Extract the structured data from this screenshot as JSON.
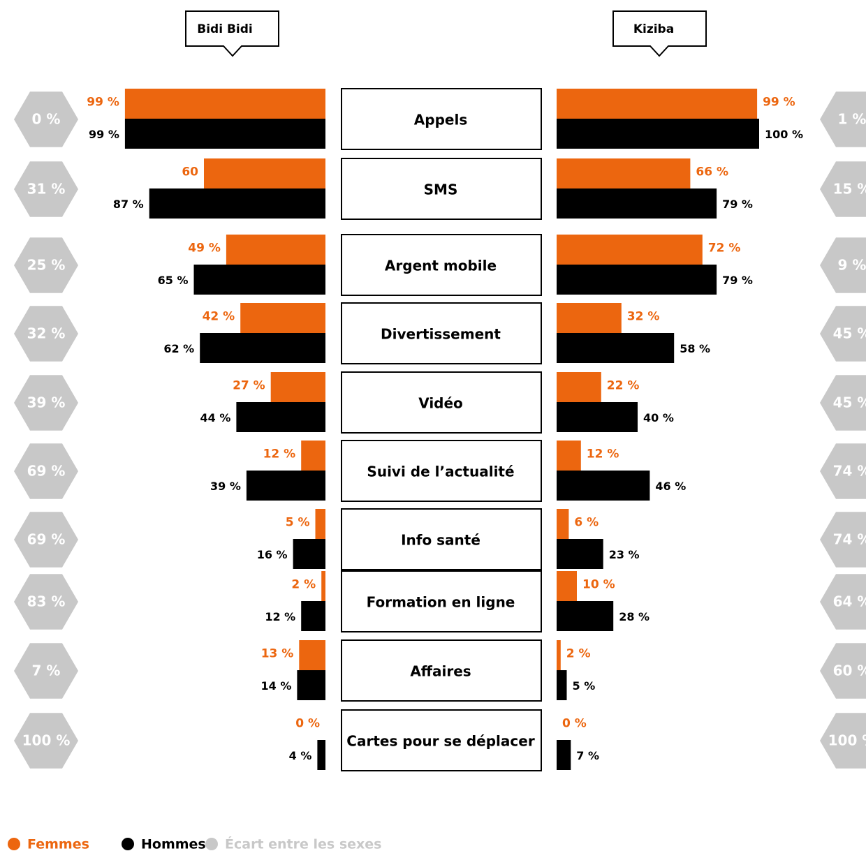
{
  "chart_data": {
    "type": "butterfly",
    "categories": [
      "Appels",
      "SMS",
      "Argent mobile",
      "Divertissement",
      "Vidéo",
      "Suivi de l’actualité",
      "Info santé",
      "Formation en ligne",
      "Affaires",
      "Cartes pour se déplacer"
    ],
    "xlim": [
      0,
      100
    ],
    "gap_name": "Écart entre les sexes",
    "gap_color": "#c8c8c8",
    "left": {
      "title": "Bidi Bidi",
      "series": [
        {
          "name": "Femmes",
          "color": "#ec660f",
          "values": [
            99,
            60,
            49,
            42,
            27,
            12,
            5,
            2,
            13,
            0
          ],
          "value_labels": [
            "99 %",
            "60",
            "49 %",
            "42 %",
            "27 %",
            "12 %",
            "5 %",
            "2 %",
            "13 %",
            "0 %"
          ]
        },
        {
          "name": "Hommes",
          "color": "#000000",
          "values": [
            99,
            87,
            65,
            62,
            44,
            39,
            16,
            12,
            14,
            4
          ],
          "value_labels": [
            "99 %",
            "87 %",
            "65 %",
            "62 %",
            "44 %",
            "39 %",
            "16 %",
            "12 %",
            "14 %",
            "4 %"
          ]
        }
      ],
      "gap": {
        "values": [
          0,
          31,
          25,
          32,
          39,
          69,
          69,
          83,
          7,
          100
        ],
        "value_labels": [
          "0 %",
          "31 %",
          "25 %",
          "32 %",
          "39 %",
          "69 %",
          "69 %",
          "83 %",
          "7 %",
          "100 %"
        ]
      }
    },
    "right": {
      "title": "Kiziba",
      "series": [
        {
          "name": "Femmes",
          "color": "#ec660f",
          "values": [
            99,
            66,
            72,
            32,
            22,
            12,
            6,
            10,
            2,
            0
          ],
          "value_labels": [
            "99 %",
            "66 %",
            "72 %",
            "32 %",
            "22 %",
            "12 %",
            "6 %",
            "10 %",
            "2 %",
            "0 %"
          ]
        },
        {
          "name": "Hommes",
          "color": "#000000",
          "values": [
            100,
            79,
            79,
            58,
            40,
            46,
            23,
            28,
            5,
            7
          ],
          "value_labels": [
            "100 %",
            "79 %",
            "79 %",
            "58 %",
            "40 %",
            "46 %",
            "23 %",
            "28 %",
            "5 %",
            "7 %"
          ]
        }
      ],
      "gap": {
        "values": [
          1,
          15,
          9,
          45,
          45,
          74,
          74,
          64,
          60,
          100
        ],
        "value_labels": [
          "1 %",
          "15 %",
          "9 %",
          "45 %",
          "45 %",
          "74 %",
          "74 %",
          "64 %",
          "60 %",
          "100 %"
        ]
      }
    }
  }
}
